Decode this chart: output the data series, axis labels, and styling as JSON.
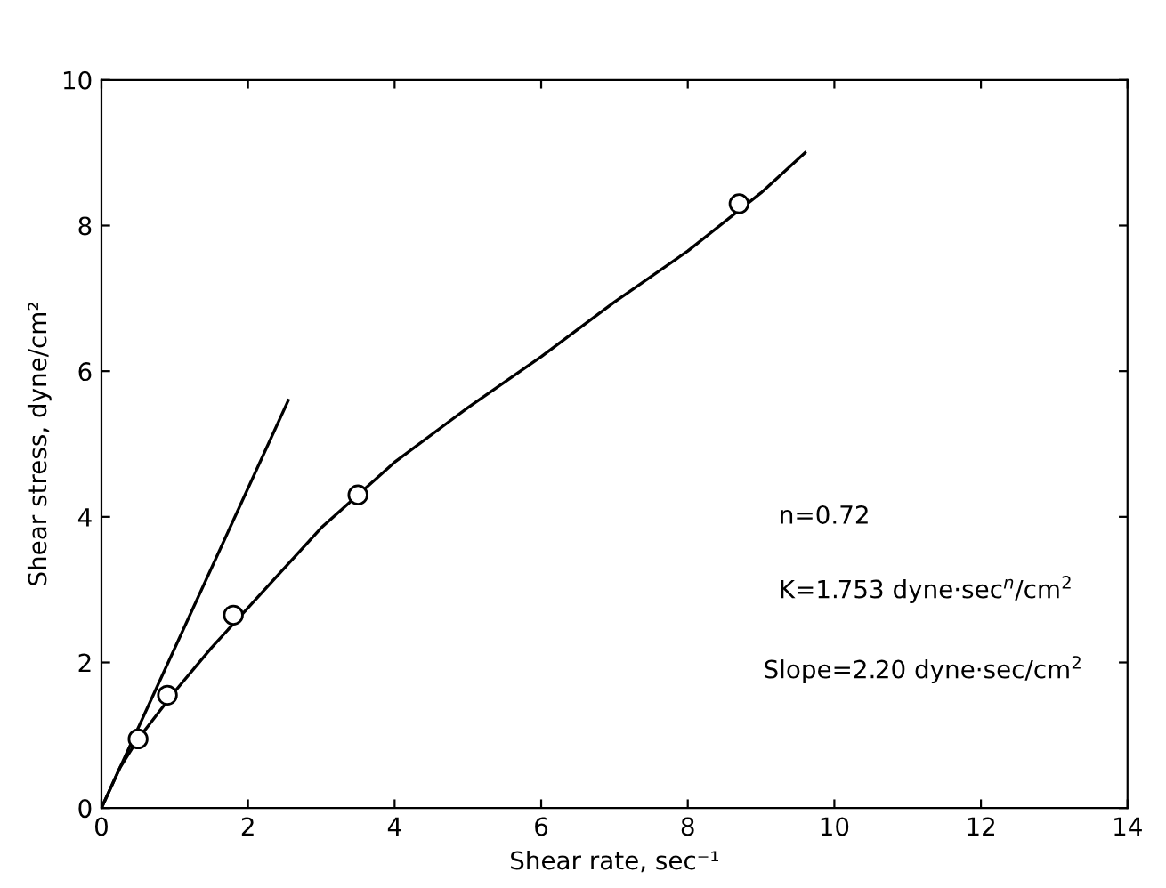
{
  "chart_data": {
    "type": "line",
    "xlabel": "Shear rate, sec⁻¹",
    "ylabel": "Shear stress, dyne/cm²",
    "xlim": [
      0,
      14
    ],
    "ylim": [
      0,
      10
    ],
    "xticks": [
      0,
      2,
      4,
      6,
      8,
      10,
      12,
      14
    ],
    "yticks": [
      0,
      2,
      4,
      6,
      8,
      10
    ],
    "grid": false,
    "legend": false,
    "series": [
      {
        "type": "line",
        "color": "#000000",
        "x": [
          0,
          0.25,
          0.5,
          1,
          1.5,
          2,
          3,
          4,
          5,
          6,
          7,
          8,
          9,
          9.6
        ],
        "values": [
          0,
          0.55,
          0.95,
          1.6,
          2.2,
          2.75,
          3.85,
          4.75,
          5.5,
          6.2,
          6.95,
          7.65,
          8.45,
          9.0
        ]
      },
      {
        "type": "line",
        "color": "#000000",
        "x": [
          0,
          2.55
        ],
        "values": [
          0,
          5.6
        ]
      },
      {
        "type": "scatter",
        "color": "#000000",
        "marker": "circle",
        "x": [
          0.5,
          0.9,
          1.8,
          3.5,
          8.7
        ],
        "values": [
          0.95,
          1.55,
          2.65,
          4.3,
          8.3
        ]
      }
    ],
    "annotations": [
      "n=0.72",
      "K=1.753 dyne·sec$^{n}$/cm$^{2}$",
      "Slope=2.20 dyne·sec/cm$^{2}$"
    ]
  }
}
